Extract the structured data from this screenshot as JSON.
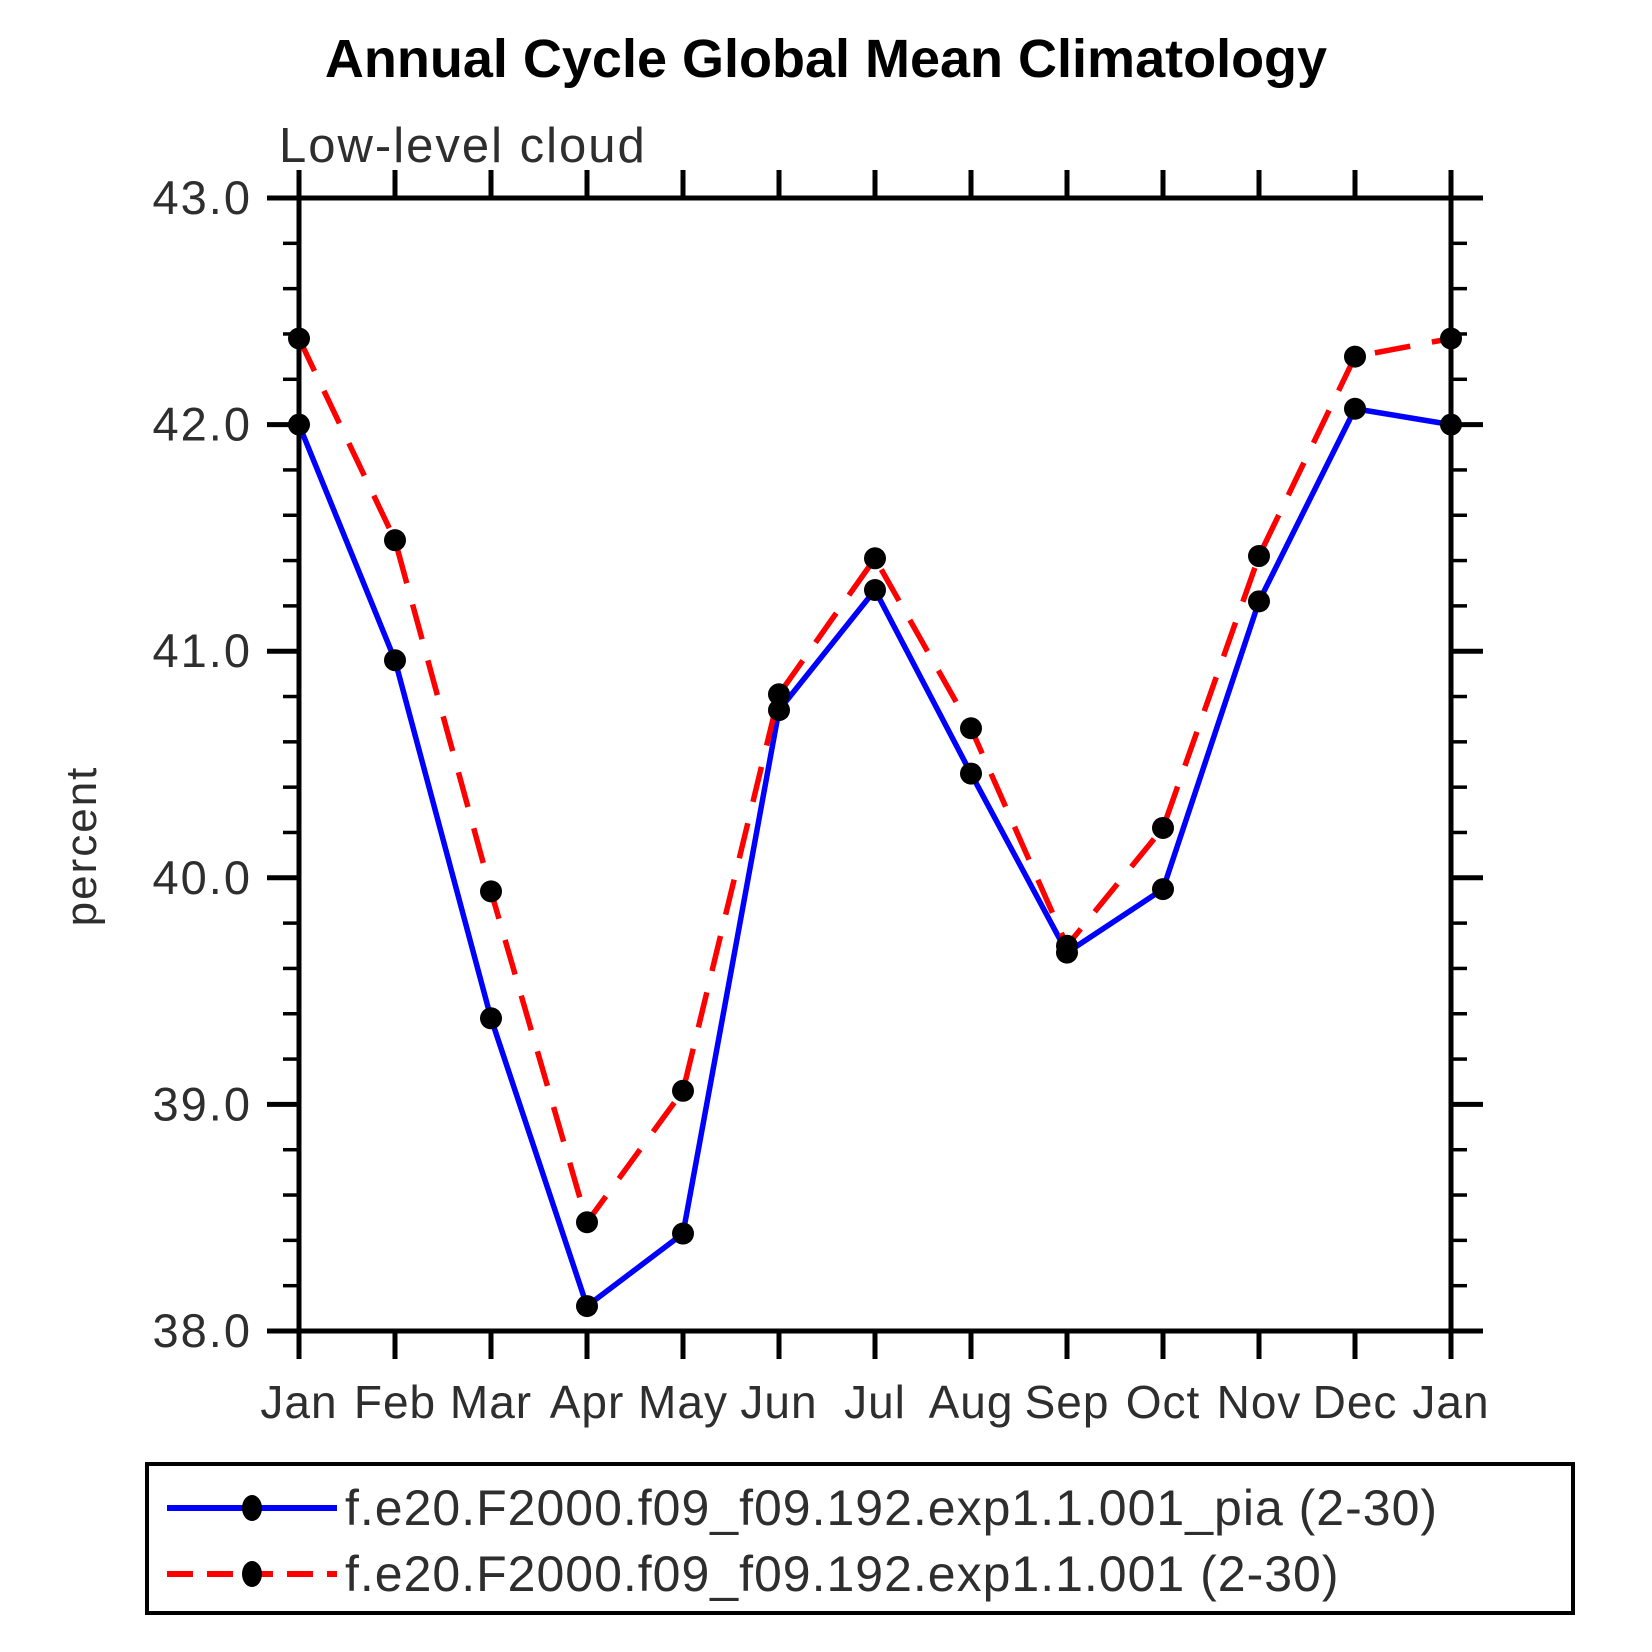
{
  "title": "Annual Cycle Global Mean Climatology",
  "subtitle": "Low-level cloud",
  "ylabel": "percent",
  "colors": {
    "series1_line": "#0000ff",
    "series2_line": "#ff0000",
    "marker": "#000000",
    "axis": "#000000",
    "text": "#2e2e2e"
  },
  "chart_data": {
    "type": "line",
    "title": "Annual Cycle Global Mean Climatology",
    "subtitle": "Low-level cloud",
    "xlabel": "",
    "ylabel": "percent",
    "categories": [
      "Jan",
      "Feb",
      "Mar",
      "Apr",
      "May",
      "Jun",
      "Jul",
      "Aug",
      "Sep",
      "Oct",
      "Nov",
      "Dec",
      "Jan"
    ],
    "series": [
      {
        "name": "f.e20.F2000.f09_f09.192.exp1.1.001_pia (2-30)",
        "line_style": "solid",
        "color": "#0000ff",
        "marker": "filled-circle",
        "marker_color": "#000000",
        "values": [
          42.0,
          40.96,
          39.38,
          38.11,
          38.43,
          40.74,
          41.27,
          40.46,
          39.67,
          39.95,
          41.22,
          42.07,
          42.0
        ]
      },
      {
        "name": "f.e20.F2000.f09_f09.192.exp1.1.001 (2-30)",
        "line_style": "dashed",
        "color": "#ff0000",
        "marker": "filled-circle",
        "marker_color": "#000000",
        "values": [
          42.38,
          41.49,
          39.94,
          38.48,
          39.06,
          40.81,
          41.41,
          40.66,
          39.7,
          40.22,
          41.42,
          42.3,
          42.38
        ]
      }
    ],
    "ylim": [
      38.0,
      43.0
    ],
    "ytick_major_step": 1.0,
    "ytick_minor_step": 0.2,
    "ytick_labels": [
      "38.0",
      "39.0",
      "40.0",
      "41.0",
      "42.0",
      "43.0"
    ],
    "grid": "off",
    "legend_position": "bottom"
  },
  "legend": {
    "entries": [
      {
        "label": "f.e20.F2000.f09_f09.192.exp1.1.001_pia (2-30)"
      },
      {
        "label": "f.e20.F2000.f09_f09.192.exp1.1.001 (2-30)"
      }
    ]
  }
}
